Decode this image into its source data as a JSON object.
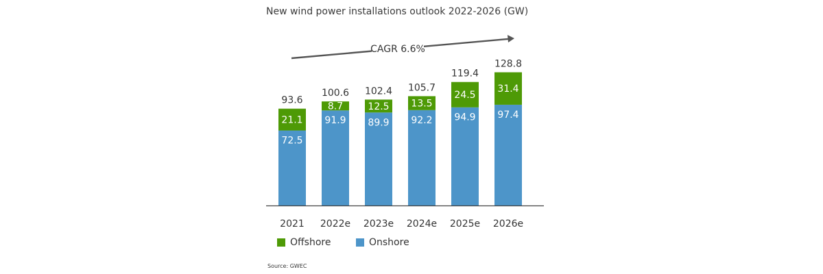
{
  "chart_data": {
    "type": "bar",
    "stacked": true,
    "title": "New wind power installations outlook 2022-2026 (GW)",
    "categories": [
      "2021",
      "2022e",
      "2023e",
      "2024e",
      "2025e",
      "2026e"
    ],
    "series": [
      {
        "name": "Onshore",
        "color": "#4d95c9",
        "values": [
          72.5,
          91.9,
          89.9,
          92.2,
          94.9,
          97.4
        ]
      },
      {
        "name": "Offshore",
        "color": "#4e9a06",
        "values": [
          21.1,
          8.7,
          12.5,
          13.5,
          24.5,
          31.4
        ]
      }
    ],
    "totals": [
      93.6,
      100.6,
      102.4,
      105.7,
      119.4,
      128.8
    ],
    "value_labels": {
      "Onshore": [
        "72.5",
        "91.9",
        "89.9",
        "92.2",
        "94.9",
        "97.4"
      ],
      "Offshore": [
        "21.1",
        "8.7",
        "12.5",
        "13.5",
        "24.5",
        "31.4"
      ],
      "totals": [
        "93.6",
        "100.6",
        "102.4",
        "105.7",
        "119.4",
        "128.8"
      ]
    },
    "annotation": "CAGR 6.6%",
    "ylim": [
      0,
      135
    ],
    "grid": false,
    "legend": {
      "position": "bottom-left",
      "items": [
        "Offshore",
        "Onshore"
      ]
    },
    "xlabel": "",
    "ylabel": ""
  },
  "source": "Source: GWEC"
}
